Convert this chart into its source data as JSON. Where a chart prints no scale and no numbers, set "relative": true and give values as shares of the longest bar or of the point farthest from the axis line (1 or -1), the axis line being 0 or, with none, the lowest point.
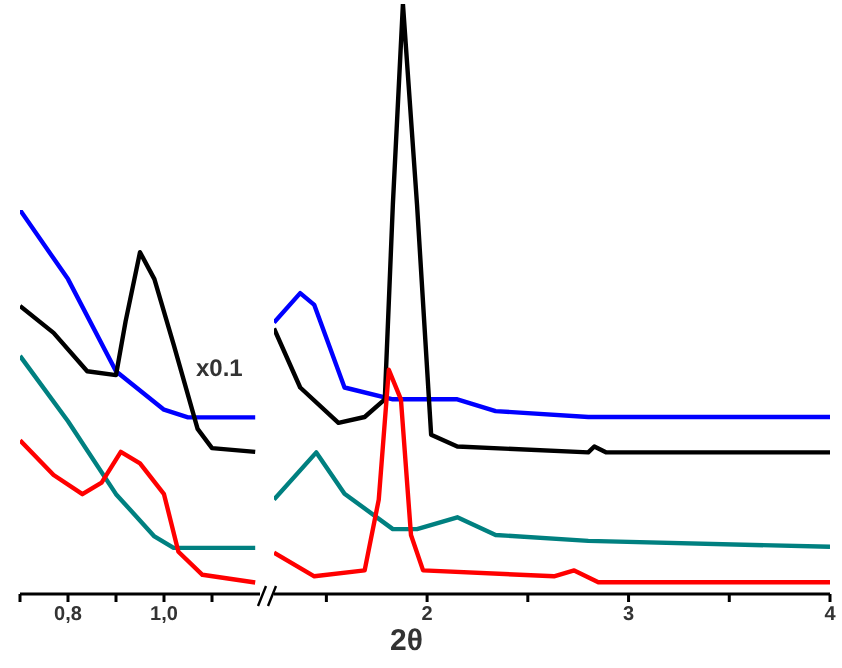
{
  "chart_data": [
    {
      "type": "line",
      "relative": true,
      "xlim": [
        0.7,
        1.2
      ],
      "xticks": [
        {
          "value": 0.7,
          "label": null
        },
        {
          "value": 0.8,
          "label": "0,8"
        },
        {
          "value": 0.9,
          "label": null
        },
        {
          "value": 1.0,
          "label": "1,0"
        },
        {
          "value": 1.1,
          "label": null
        }
      ],
      "annotations": [
        "x0.1"
      ],
      "series": [
        {
          "color": "#0000ff",
          "x": [
            0.7,
            0.8,
            0.9,
            1.0,
            1.05,
            1.19
          ],
          "values": [
            1.0,
            0.82,
            0.58,
            0.48,
            0.46,
            0.46
          ]
        },
        {
          "color": "#000000",
          "x": [
            0.7,
            0.77,
            0.84,
            0.9,
            0.92,
            0.95,
            0.98,
            1.02,
            1.07,
            1.1,
            1.19
          ],
          "values": [
            0.75,
            0.68,
            0.58,
            0.57,
            0.71,
            0.89,
            0.82,
            0.65,
            0.43,
            0.38,
            0.37
          ]
        },
        {
          "color": "#008080",
          "x": [
            0.7,
            0.8,
            0.9,
            0.98,
            1.02,
            1.19
          ],
          "values": [
            0.62,
            0.45,
            0.26,
            0.15,
            0.12,
            0.12
          ]
        },
        {
          "color": "#ff0000",
          "x": [
            0.7,
            0.77,
            0.83,
            0.87,
            0.91,
            0.95,
            1.0,
            1.03,
            1.08,
            1.19
          ],
          "values": [
            0.4,
            0.31,
            0.26,
            0.29,
            0.37,
            0.34,
            0.26,
            0.11,
            0.05,
            0.03
          ]
        }
      ]
    },
    {
      "type": "line",
      "relative": true,
      "xlim": [
        1.24,
        4
      ],
      "xticks": [
        {
          "value": 1.5,
          "label": null
        },
        2,
        {
          "value": 2.5,
          "label": null
        },
        3,
        {
          "value": 3.5,
          "label": null
        },
        4
      ],
      "xlabel": "2θ",
      "series": [
        {
          "color": "#0000ff",
          "x": [
            1.24,
            1.37,
            1.44,
            1.59,
            1.83,
            2.15,
            2.34,
            2.8,
            4.0
          ],
          "values": [
            0.46,
            0.51,
            0.49,
            0.35,
            0.33,
            0.33,
            0.31,
            0.3,
            0.3
          ]
        },
        {
          "color": "#000000",
          "x": [
            1.24,
            1.37,
            1.56,
            1.69,
            1.79,
            1.83,
            1.88,
            1.95,
            2.02,
            2.15,
            2.8,
            2.83,
            2.89,
            4.0
          ],
          "values": [
            0.45,
            0.35,
            0.29,
            0.3,
            0.33,
            0.66,
            1.0,
            0.66,
            0.27,
            0.25,
            0.24,
            0.25,
            0.24,
            0.24
          ]
        },
        {
          "color": "#008080",
          "x": [
            1.24,
            1.45,
            1.59,
            1.83,
            1.95,
            2.15,
            2.34,
            2.8,
            4.0
          ],
          "values": [
            0.16,
            0.24,
            0.17,
            0.11,
            0.11,
            0.13,
            0.1,
            0.09,
            0.08
          ]
        },
        {
          "color": "#ff0000",
          "x": [
            1.24,
            1.44,
            1.69,
            1.76,
            1.81,
            1.87,
            1.92,
            1.98,
            2.63,
            2.73,
            2.85,
            4.0
          ],
          "values": [
            0.07,
            0.03,
            0.04,
            0.16,
            0.38,
            0.33,
            0.1,
            0.04,
            0.03,
            0.04,
            0.02,
            0.02
          ]
        }
      ]
    }
  ]
}
